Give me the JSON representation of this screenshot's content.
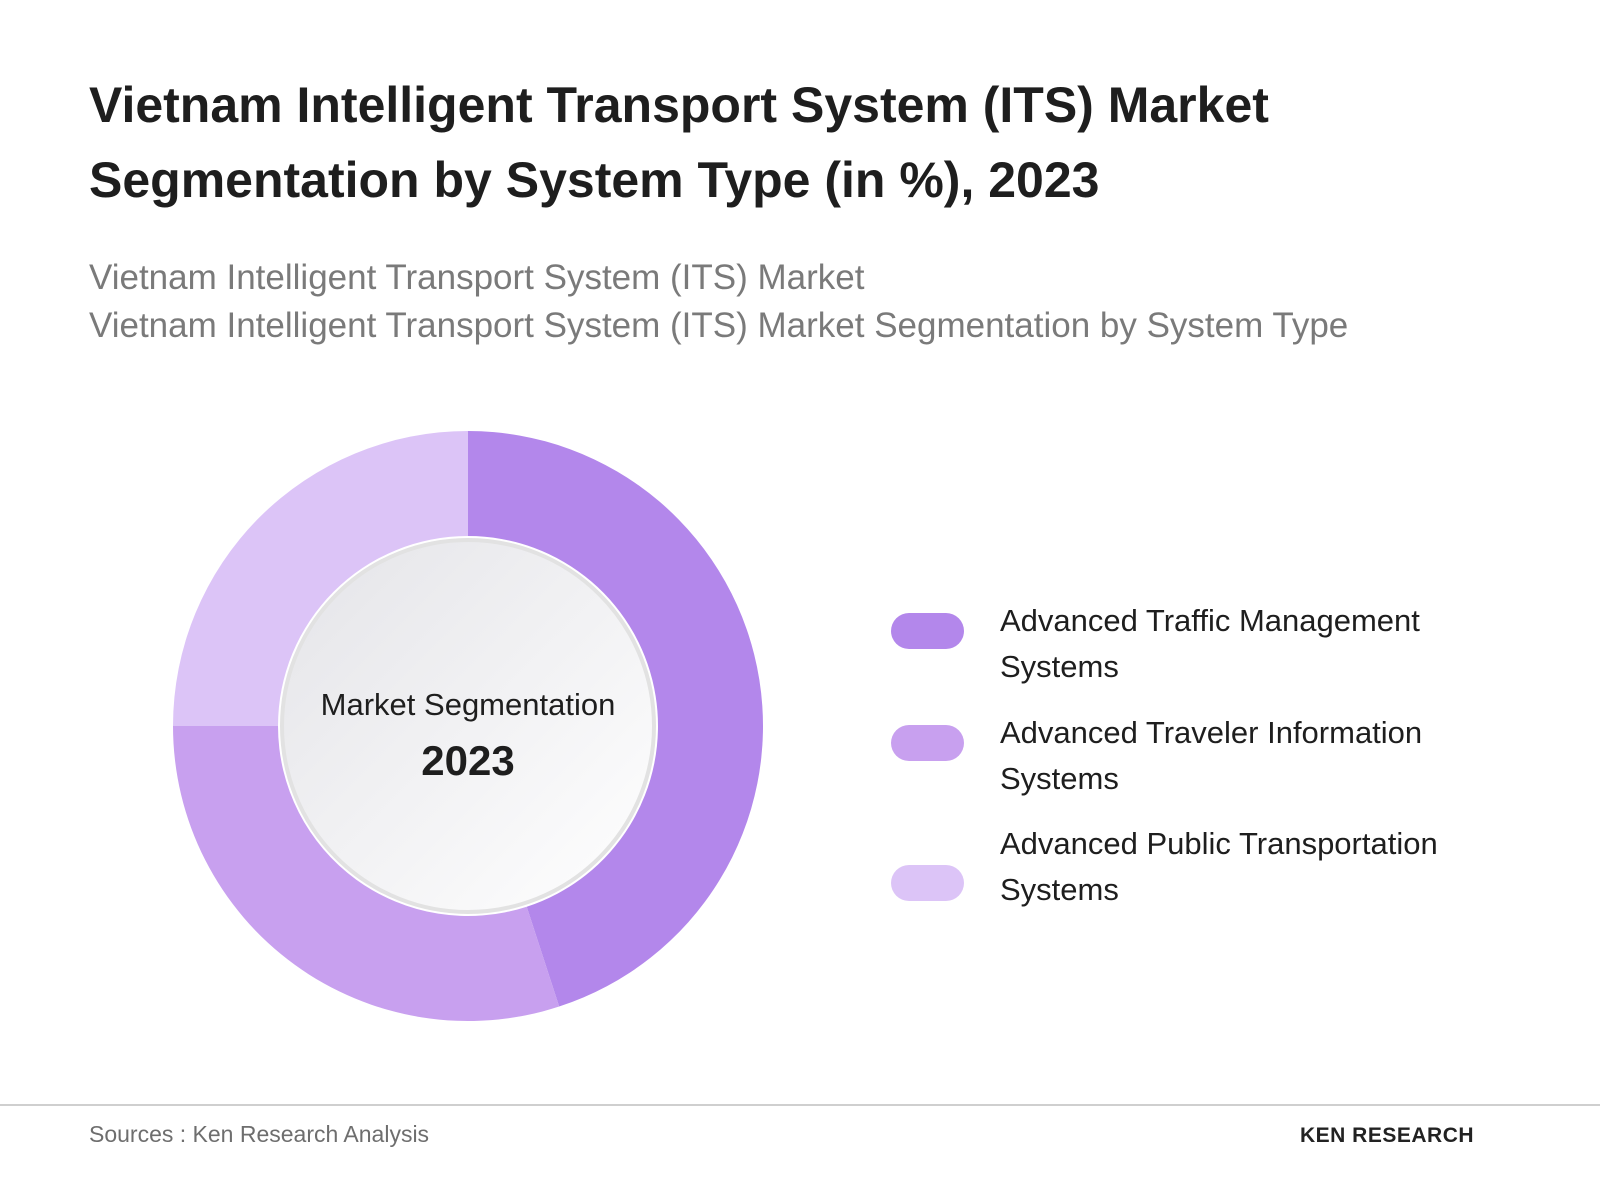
{
  "chart_data": {
    "type": "pie",
    "title": "Vietnam Intelligent Transport System (ITS) Market Segmentation by System Type (in %), 2023",
    "subtitle": [
      "Vietnam Intelligent Transport System (ITS) Market",
      "Vietnam Intelligent Transport System (ITS) Market Segmentation by System Type"
    ],
    "center_label": "Market Segmentation",
    "center_value": "2023",
    "categories": [
      "Advanced Traffic Management Systems",
      "Advanced Traveler Information Systems",
      "Advanced Public Transportation Systems"
    ],
    "values": [
      45,
      30,
      25
    ],
    "colors": [
      "#b387eb",
      "#c8a0ef",
      "#dcc4f7"
    ]
  },
  "footer": {
    "source": "Sources : Ken Research Analysis",
    "logo": "KEN RESEARCH"
  }
}
